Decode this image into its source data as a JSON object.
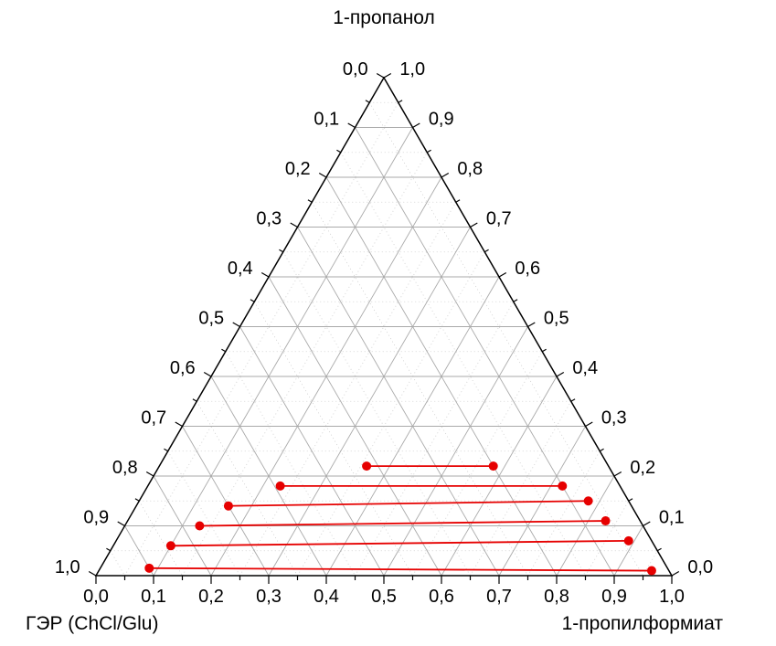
{
  "chart_data": {
    "type": "scatter",
    "subtype": "ternary-phase-diagram",
    "title": "",
    "axes": {
      "top_label": "1-пропанол",
      "left_label": "ГЭР (ChCl/Glu)",
      "right_label": "1-пропилформиат",
      "tick_labels": [
        "0,0",
        "0,1",
        "0,2",
        "0,3",
        "0,4",
        "0,5",
        "0,6",
        "0,7",
        "0,8",
        "0,9",
        "1,0"
      ],
      "range": [
        0,
        1
      ],
      "major_step": 0.1,
      "minor_step": 0.05,
      "grid": "on"
    },
    "components_order": [
      "ГЭР (ChCl/Glu)",
      "1-пропанол",
      "1-пропилформиат"
    ],
    "tie_lines": [
      {
        "left": [
          0.42,
          0.22,
          0.36
        ],
        "right": [
          0.2,
          0.22,
          0.58
        ]
      },
      {
        "left": [
          0.59,
          0.18,
          0.23
        ],
        "right": [
          0.1,
          0.18,
          0.72
        ]
      },
      {
        "left": [
          0.7,
          0.14,
          0.16
        ],
        "right": [
          0.07,
          0.15,
          0.78
        ]
      },
      {
        "left": [
          0.77,
          0.1,
          0.13
        ],
        "right": [
          0.06,
          0.11,
          0.83
        ]
      },
      {
        "left": [
          0.84,
          0.06,
          0.1
        ],
        "right": [
          0.04,
          0.07,
          0.89
        ]
      },
      {
        "left": [
          0.9,
          0.015,
          0.085
        ],
        "right": [
          0.03,
          0.01,
          0.96
        ]
      }
    ],
    "style": {
      "point_color": "#e60000",
      "line_color": "#e60000",
      "grid_major_color": "#aaaaaa",
      "grid_minor_color": "#cccccc",
      "axis_color": "#000000",
      "point_radius": 5
    }
  }
}
